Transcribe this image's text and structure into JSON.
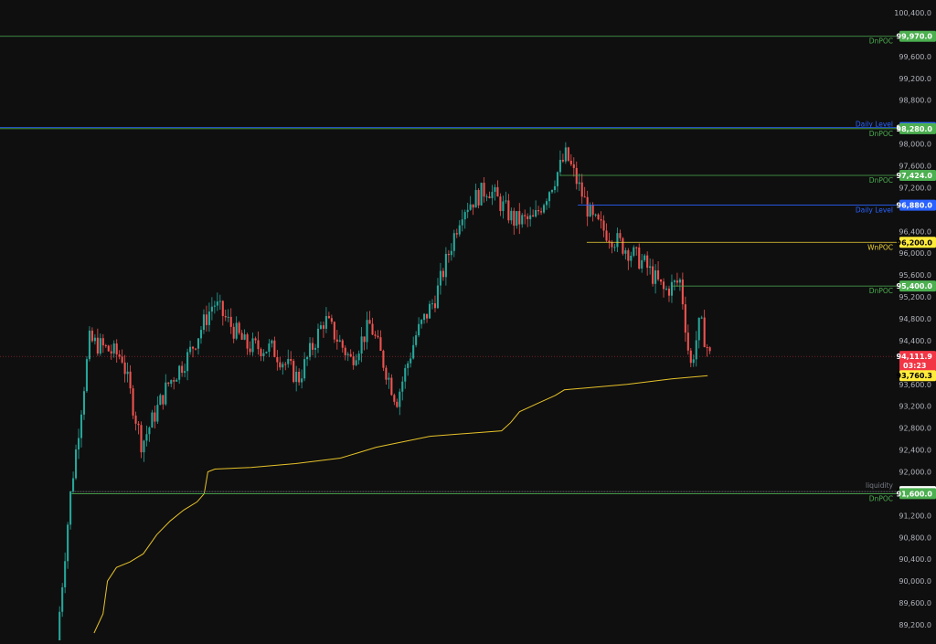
{
  "chart_data": {
    "type": "candlestick",
    "price_axis": {
      "ticks": [
        "100,400.0",
        "99,600.0",
        "99,200.0",
        "98,800.0",
        "98,000.0",
        "97,600.0",
        "97,200.0",
        "96,400.0",
        "96,000.0",
        "95,600.0",
        "95,200.0",
        "94,800.0",
        "94,400.0",
        "93,600.0",
        "93,200.0",
        "92,800.0",
        "92,400.0",
        "92,000.0",
        "91,200.0",
        "90,800.0",
        "90,400.0",
        "90,000.0",
        "89,600.0",
        "89,200.0"
      ],
      "ylim": [
        89000,
        100600
      ]
    },
    "levels": [
      {
        "name": "DnPOC",
        "price": 99970,
        "tag": "99,970.0",
        "color": "#4caf50",
        "tag_color": "#4caf50",
        "tag_text_color": "#ffffff",
        "x_start": 0
      },
      {
        "name": "Daily Level",
        "price": 98300,
        "tag": "98,300.0",
        "color": "#2962ff",
        "tag_color": "#2962ff",
        "tag_text_color": "#ffffff",
        "x_start": 0
      },
      {
        "name": "DnPOC",
        "price": 98280,
        "tag": "98,280.0",
        "color": "#4caf50",
        "tag_color": "#4caf50",
        "tag_text_color": "#ffffff",
        "x_start": 0
      },
      {
        "name": "DnPOC",
        "price": 97424,
        "tag": "97,424.0",
        "color": "#4caf50",
        "tag_color": "#4caf50",
        "tag_text_color": "#ffffff",
        "x_start": 0.625
      },
      {
        "name": "Daily Level",
        "price": 96880,
        "tag": "96,880.0",
        "color": "#2962ff",
        "tag_color": "#2962ff",
        "tag_text_color": "#ffffff",
        "x_start": 0.645
      },
      {
        "name": "WnPOC",
        "price": 96200,
        "tag": "96,200.0",
        "color": "#f0d438",
        "tag_color": "#ffeb3b",
        "tag_text_color": "#000000",
        "x_start": 0.655
      },
      {
        "name": "DnPOC",
        "price": 95400,
        "tag": "95,400.0",
        "color": "#4caf50",
        "tag_color": "#4caf50",
        "tag_text_color": "#ffffff",
        "x_start": 0.75
      },
      {
        "name": "liquidity",
        "price": 91638.4,
        "tag": "91,638.4",
        "color": "#787b86",
        "tag_color": "#ffffff",
        "tag_text_color": "#000000",
        "x_start": 0.08
      },
      {
        "name": "DnPOC",
        "price": 91600,
        "tag": "91,600.0",
        "color": "#4caf50",
        "tag_color": "#4caf50",
        "tag_text_color": "#ffffff",
        "x_start": 0.08
      }
    ],
    "current_price": {
      "price": 94111.9,
      "tag": "94,111.9",
      "countdown": "03:23",
      "color": "#f23645"
    },
    "vwap": {
      "price": 93760.3,
      "tag": "93,760.3",
      "color": "#e6c229",
      "points": [
        [
          0.105,
          89050
        ],
        [
          0.115,
          89400
        ],
        [
          0.12,
          90000
        ],
        [
          0.13,
          90250
        ],
        [
          0.145,
          90350
        ],
        [
          0.16,
          90500
        ],
        [
          0.175,
          90850
        ],
        [
          0.19,
          91100
        ],
        [
          0.205,
          91300
        ],
        [
          0.22,
          91450
        ],
        [
          0.228,
          91600
        ],
        [
          0.232,
          92000
        ],
        [
          0.24,
          92050
        ],
        [
          0.28,
          92080
        ],
        [
          0.33,
          92150
        ],
        [
          0.38,
          92250
        ],
        [
          0.4,
          92350
        ],
        [
          0.42,
          92450
        ],
        [
          0.45,
          92550
        ],
        [
          0.48,
          92650
        ],
        [
          0.52,
          92700
        ],
        [
          0.56,
          92750
        ],
        [
          0.57,
          92900
        ],
        [
          0.58,
          93100
        ],
        [
          0.6,
          93250
        ],
        [
          0.62,
          93400
        ],
        [
          0.63,
          93500
        ],
        [
          0.7,
          93600
        ],
        [
          0.75,
          93700
        ],
        [
          0.79,
          93760
        ]
      ]
    }
  },
  "candles": {
    "first_x": 0.065,
    "last_x": 0.794,
    "path": [
      [
        0,
        88900
      ],
      [
        0.02,
        91500
      ],
      [
        0.05,
        94400
      ],
      [
        0.1,
        94100
      ],
      [
        0.13,
        92500
      ],
      [
        0.17,
        93600
      ],
      [
        0.2,
        94100
      ],
      [
        0.24,
        95100
      ],
      [
        0.29,
        94300
      ],
      [
        0.33,
        94250
      ],
      [
        0.37,
        93700
      ],
      [
        0.41,
        94800
      ],
      [
        0.45,
        94050
      ],
      [
        0.48,
        94700
      ],
      [
        0.52,
        93300
      ],
      [
        0.55,
        94500
      ],
      [
        0.58,
        95200
      ],
      [
        0.62,
        96800
      ],
      [
        0.66,
        97200
      ],
      [
        0.7,
        96600
      ],
      [
        0.73,
        96600
      ],
      [
        0.78,
        97800
      ],
      [
        0.82,
        96600
      ],
      [
        0.86,
        96200
      ],
      [
        0.9,
        95800
      ],
      [
        0.93,
        95300
      ],
      [
        0.955,
        95500
      ],
      [
        0.97,
        93900
      ],
      [
        0.985,
        94750
      ],
      [
        1,
        94112
      ]
    ]
  }
}
